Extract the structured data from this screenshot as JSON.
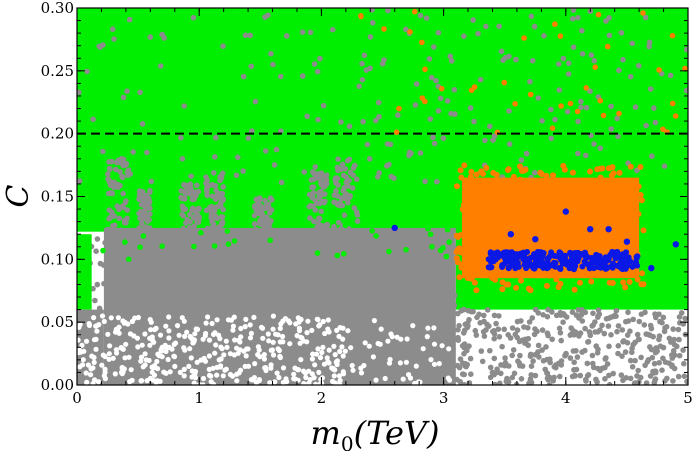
{
  "chart_data": {
    "type": "scatter",
    "title": "",
    "xlabel_main": "m",
    "xlabel_sub": "0",
    "xlabel_rest": "(TeV)",
    "ylabel": "C",
    "xlim": [
      0,
      5
    ],
    "ylim": [
      0,
      0.3
    ],
    "x_ticks": [
      "0",
      "1",
      "2",
      "3",
      "4",
      "5"
    ],
    "y_ticks": [
      "0.00",
      "0.05",
      "0.10",
      "0.15",
      "0.20",
      "0.25",
      "0.30"
    ],
    "grid": false,
    "legend": "none",
    "reference_line": {
      "y": 0.2,
      "style": "dashed",
      "color": "#000000"
    },
    "colors": {
      "gray": "#8c8c8c",
      "green": "#00ee00",
      "orange": "#ff7f00",
      "blue": "#0a18e6"
    },
    "regions": [
      {
        "color": "gray",
        "x": [
          0.0,
          3.1
        ],
        "y": [
          0.0,
          0.125
        ],
        "description_color": "gray"
      },
      {
        "color": "gray",
        "x": [
          3.1,
          5.0
        ],
        "y": [
          0.0,
          0.06
        ]
      },
      {
        "color": "green",
        "x": [
          0.0,
          5.0
        ],
        "y": [
          0.12,
          0.3
        ]
      },
      {
        "color": "green",
        "x": [
          3.1,
          5.0
        ],
        "y": [
          0.06,
          0.2
        ]
      },
      {
        "color": "orange",
        "x": [
          3.1,
          4.6
        ],
        "y": [
          0.075,
          0.17
        ]
      },
      {
        "color": "blue",
        "x": [
          3.35,
          4.6
        ],
        "y": [
          0.09,
          0.115
        ]
      }
    ],
    "series": [
      {
        "color": "blue",
        "points": [
          [
            3.4,
            0.104
          ],
          [
            3.6,
            0.104
          ],
          [
            3.85,
            0.1
          ],
          [
            4.0,
            0.099
          ],
          [
            4.25,
            0.098
          ],
          [
            4.5,
            0.095
          ],
          [
            3.55,
            0.12
          ],
          [
            3.75,
            0.116
          ],
          [
            4.2,
            0.124
          ],
          [
            4.35,
            0.124
          ],
          [
            4.5,
            0.114
          ],
          [
            4.7,
            0.093
          ],
          [
            4.9,
            0.112
          ],
          [
            2.6,
            0.125
          ],
          [
            4.0,
            0.138
          ],
          [
            3.95,
            0.093
          ],
          [
            4.1,
            0.105
          ],
          [
            3.7,
            0.1
          ]
        ]
      }
    ]
  }
}
